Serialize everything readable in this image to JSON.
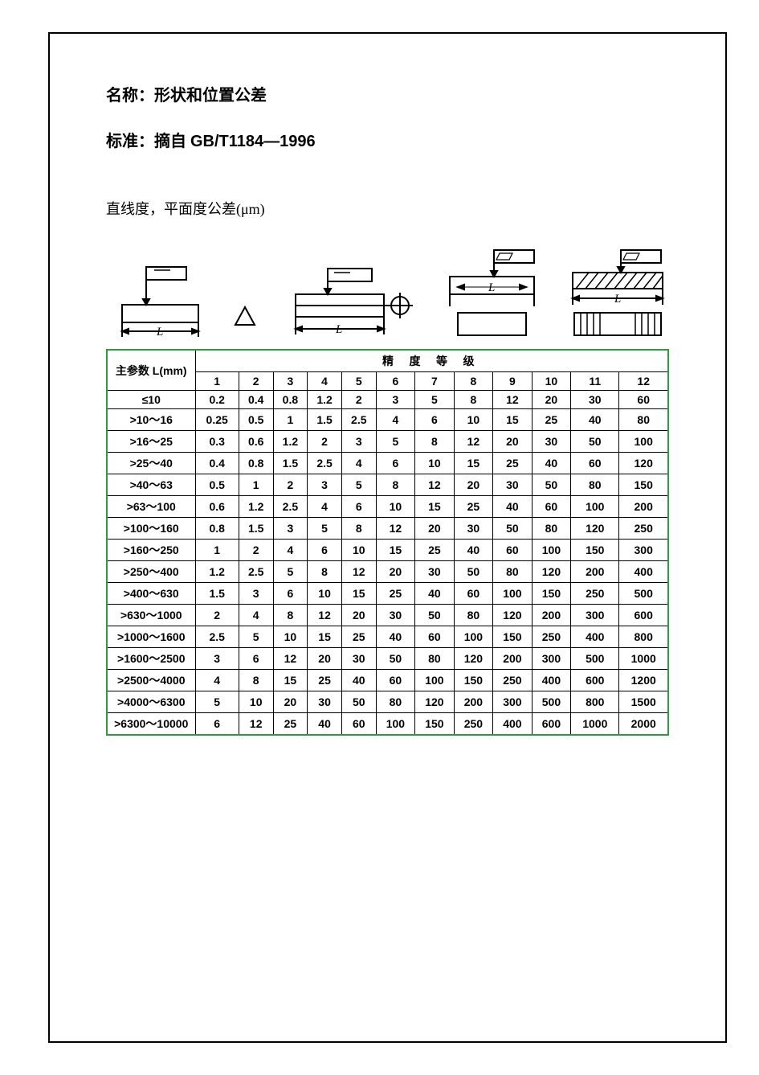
{
  "header": {
    "name_label": "名称：",
    "name_value": "形状和位置公差",
    "std_label": "标准：",
    "std_prefix": "摘自 ",
    "std_value": "GB/T1184—1996",
    "subtitle": "直线度，平面度公差(μm)"
  },
  "table": {
    "param_header": "主参数 L(mm)",
    "grade_header": "精 度 等 级",
    "grades": [
      "1",
      "2",
      "3",
      "4",
      "5",
      "6",
      "7",
      "8",
      "9",
      "10",
      "11",
      "12"
    ],
    "rows": [
      {
        "label": "≤10",
        "v": [
          "0.2",
          "0.4",
          "0.8",
          "1.2",
          "2",
          "3",
          "5",
          "8",
          "12",
          "20",
          "30",
          "60"
        ]
      },
      {
        "label": ">10～16",
        "v": [
          "0.25",
          "0.5",
          "1",
          "1.5",
          "2.5",
          "4",
          "6",
          "10",
          "15",
          "25",
          "40",
          "80"
        ]
      },
      {
        "label": ">16～25",
        "v": [
          "0.3",
          "0.6",
          "1.2",
          "2",
          "3",
          "5",
          "8",
          "12",
          "20",
          "30",
          "50",
          "100"
        ]
      },
      {
        "label": ">25～40",
        "v": [
          "0.4",
          "0.8",
          "1.5",
          "2.5",
          "4",
          "6",
          "10",
          "15",
          "25",
          "40",
          "60",
          "120"
        ]
      },
      {
        "label": ">40～63",
        "v": [
          "0.5",
          "1",
          "2",
          "3",
          "5",
          "8",
          "12",
          "20",
          "30",
          "50",
          "80",
          "150"
        ]
      },
      {
        "label": ">63～100",
        "v": [
          "0.6",
          "1.2",
          "2.5",
          "4",
          "6",
          "10",
          "15",
          "25",
          "40",
          "60",
          "100",
          "200"
        ]
      },
      {
        "label": ">100～160",
        "v": [
          "0.8",
          "1.5",
          "3",
          "5",
          "8",
          "12",
          "20",
          "30",
          "50",
          "80",
          "120",
          "250"
        ]
      },
      {
        "label": ">160～250",
        "v": [
          "1",
          "2",
          "4",
          "6",
          "10",
          "15",
          "25",
          "40",
          "60",
          "100",
          "150",
          "300"
        ]
      },
      {
        "label": ">250～400",
        "v": [
          "1.2",
          "2.5",
          "5",
          "8",
          "12",
          "20",
          "30",
          "50",
          "80",
          "120",
          "200",
          "400"
        ]
      },
      {
        "label": ">400～630",
        "v": [
          "1.5",
          "3",
          "6",
          "10",
          "15",
          "25",
          "40",
          "60",
          "100",
          "150",
          "250",
          "500"
        ]
      },
      {
        "label": ">630～1000",
        "v": [
          "2",
          "4",
          "8",
          "12",
          "20",
          "30",
          "50",
          "80",
          "120",
          "200",
          "300",
          "600"
        ]
      },
      {
        "label": ">1000～1600",
        "v": [
          "2.5",
          "5",
          "10",
          "15",
          "25",
          "40",
          "60",
          "100",
          "150",
          "250",
          "400",
          "800"
        ]
      },
      {
        "label": ">1600～2500",
        "v": [
          "3",
          "6",
          "12",
          "20",
          "30",
          "50",
          "80",
          "120",
          "200",
          "300",
          "500",
          "1000"
        ]
      },
      {
        "label": ">2500～4000",
        "v": [
          "4",
          "8",
          "15",
          "25",
          "40",
          "60",
          "100",
          "150",
          "250",
          "400",
          "600",
          "1200"
        ]
      },
      {
        "label": ">4000～6300",
        "v": [
          "5",
          "10",
          "20",
          "30",
          "50",
          "80",
          "120",
          "200",
          "300",
          "500",
          "800",
          "1500"
        ]
      },
      {
        "label": ">6300～10000",
        "v": [
          "6",
          "12",
          "25",
          "40",
          "60",
          "100",
          "150",
          "250",
          "400",
          "600",
          "1000",
          "2000"
        ]
      }
    ],
    "border_color": "#2e9b3f",
    "cell_border_color": "#000000",
    "font_size": 14
  },
  "diagrams": {
    "dim_label": "L"
  }
}
